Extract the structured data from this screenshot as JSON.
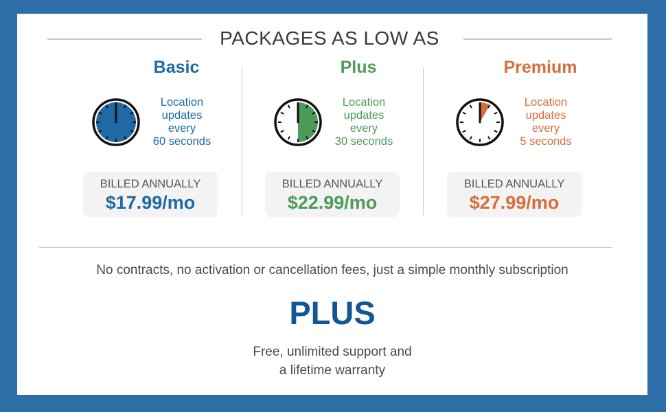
{
  "heading": "PACKAGES AS LOW AS",
  "plans": [
    {
      "name": "Basic",
      "update_lines": [
        "Location",
        "updates",
        "every",
        "60 seconds"
      ],
      "update_interval_seconds": 60,
      "billed_label": "BILLED ANNUALLY",
      "price": "$17.99/mo",
      "color": "#1f6aa5",
      "icon": "clock-icon"
    },
    {
      "name": "Plus",
      "update_lines": [
        "Location",
        "updates",
        "every",
        "30 seconds"
      ],
      "update_interval_seconds": 30,
      "billed_label": "BILLED ANNUALLY",
      "price": "$22.99/mo",
      "color": "#4e9a5a",
      "icon": "clock-icon"
    },
    {
      "name": "Premium",
      "update_lines": [
        "Location",
        "updates",
        "every",
        "5 seconds"
      ],
      "update_interval_seconds": 5,
      "billed_label": "BILLED ANNUALLY",
      "price": "$27.99/mo",
      "color": "#d56f3a",
      "icon": "clock-icon"
    }
  ],
  "footnote": "No contracts, no activation or cancellation fees, just a simple monthly subscription",
  "plus_heading": "PLUS",
  "bonus_lines": [
    "Free, unlimited support and",
    "a lifetime warranty"
  ],
  "colors": {
    "frame": "#2e6ea8",
    "plus_heading": "#115697",
    "rule": "#c9c9c9",
    "billing_box": "#f3f3f3"
  }
}
